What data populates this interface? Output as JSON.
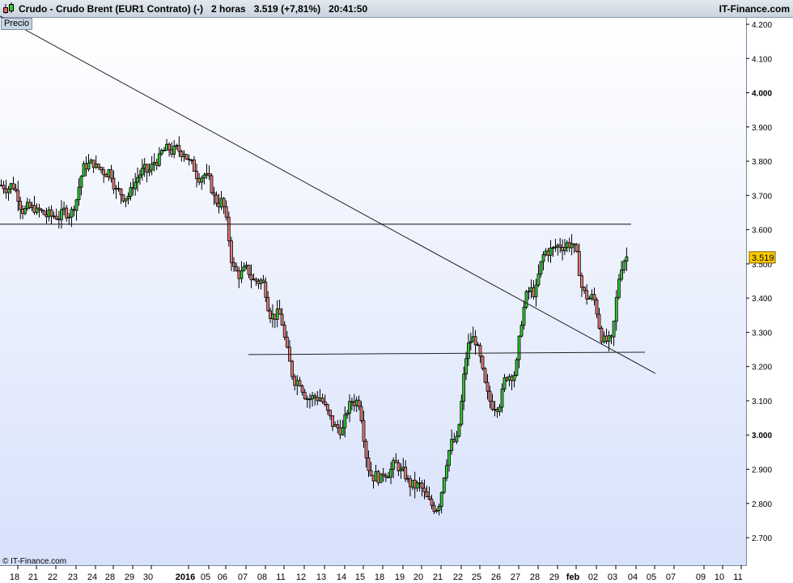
{
  "header": {
    "instrument": "Crudo - Crudo Brent (EUR1 Contrato) (-)",
    "timeframe": "2 horas",
    "last": "3.519 (+7,81%)",
    "time": "20:41:50",
    "brand": "IT-Finance.com"
  },
  "panel_label": "Precio",
  "copyright": "© IT-Finance.com",
  "chart_data": {
    "type": "candlestick",
    "colors": {
      "up": "#33cc33",
      "down": "#e87a7a",
      "outline": "#000000",
      "last_price_badge": "#ffcc00"
    },
    "ylim": [
      2.63,
      4.22
    ],
    "y_ticks": [
      "4.200",
      "4.100",
      "4.000",
      "3.900",
      "3.800",
      "3.700",
      "3.600",
      "3.500",
      "3.400",
      "3.300",
      "3.200",
      "3.100",
      "3.000",
      "2.900",
      "2.800",
      "2.700"
    ],
    "x_ticks": [
      "18",
      "21",
      "22",
      "23",
      "24",
      "28",
      "29",
      "30",
      "2016",
      "05",
      "06",
      "07",
      "08",
      "11",
      "12",
      "13",
      "14",
      "15",
      "18",
      "19",
      "20",
      "21",
      "22",
      "25",
      "26",
      "27",
      "28",
      "29",
      "feb",
      "02",
      "03",
      "04",
      "05",
      "07",
      "09",
      "10",
      "11"
    ],
    "approx_closes_by_day": [
      3.73,
      3.66,
      3.64,
      3.65,
      3.79,
      3.77,
      3.7,
      3.77,
      3.83,
      3.76,
      3.68,
      3.47,
      3.45,
      3.35,
      3.16,
      3.11,
      3.02,
      3.1,
      2.88,
      2.91,
      2.85,
      2.79,
      2.98,
      3.28,
      3.09,
      3.18,
      3.42,
      3.54,
      3.56,
      3.4,
      3.27,
      3.52
    ],
    "last_price": "3.519",
    "lines": [
      {
        "kind": "trendline",
        "from_price": 4.224,
        "to_price": 3.18
      },
      {
        "kind": "horizontal",
        "price": 3.616
      },
      {
        "kind": "support",
        "from_price": 3.235,
        "to_price": 3.242
      }
    ]
  }
}
